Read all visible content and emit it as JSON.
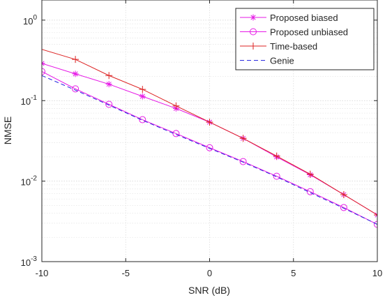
{
  "chart_data": {
    "type": "line",
    "xlabel": "SNR (dB)",
    "ylabel": "NMSE",
    "xlim": [
      -10,
      10
    ],
    "ylim": [
      0.001,
      2
    ],
    "yscale": "log",
    "grid": true,
    "legend_position": "top-right",
    "x_ticks": [
      -10,
      -5,
      0,
      5,
      10
    ],
    "x_tick_labels": [
      "-10",
      "-5",
      "0",
      "5",
      "10"
    ],
    "y_ticks": [
      0.001,
      0.01,
      0.1,
      1
    ],
    "y_tick_labels": [
      {
        "base": "10",
        "exp": "-3"
      },
      {
        "base": "10",
        "exp": "-2"
      },
      {
        "base": "10",
        "exp": "-1"
      },
      {
        "base": "10",
        "exp": "0"
      }
    ],
    "series": [
      {
        "name": "Proposed biased",
        "color": "#e619e6",
        "line": "solid",
        "marker": "asterisk",
        "x": [
          -10,
          -8,
          -6,
          -4,
          -2,
          0,
          2,
          4,
          6,
          8,
          10
        ],
        "y": [
          0.29,
          0.215,
          0.16,
          0.113,
          0.08,
          0.054,
          0.034,
          0.02,
          0.012,
          0.0068,
          0.0038
        ]
      },
      {
        "name": "Proposed unbiased",
        "color": "#e619e6",
        "line": "solid",
        "marker": "circle",
        "x": [
          -10,
          -8,
          -6,
          -4,
          -2,
          0,
          2,
          4,
          6,
          8,
          10
        ],
        "y": [
          0.23,
          0.14,
          0.09,
          0.058,
          0.039,
          0.026,
          0.0175,
          0.0115,
          0.0074,
          0.0047,
          0.0029
        ]
      },
      {
        "name": "Time-based",
        "color": "#dd2222",
        "line": "solid",
        "marker": "plus",
        "x": [
          -11,
          -8,
          -6,
          -4,
          -2,
          0,
          2,
          4,
          6,
          8,
          10
        ],
        "y": [
          0.5,
          0.325,
          0.205,
          0.138,
          0.086,
          0.054,
          0.034,
          0.0205,
          0.0122,
          0.0068,
          0.0038
        ]
      },
      {
        "name": "Genie",
        "color": "#2a2ae0",
        "line": "dashed",
        "marker": "none",
        "x": [
          -10,
          -8,
          -6,
          -4,
          -2,
          0,
          2,
          4,
          6,
          8,
          10
        ],
        "y": [
          0.205,
          0.135,
          0.088,
          0.057,
          0.038,
          0.0255,
          0.0172,
          0.0113,
          0.0072,
          0.0046,
          0.0029
        ]
      }
    ]
  }
}
